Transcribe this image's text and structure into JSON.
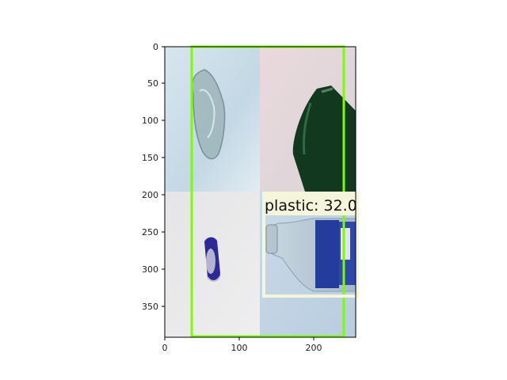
{
  "plot": {
    "x_ticks": [
      "0",
      "100",
      "200"
    ],
    "y_ticks": [
      "0",
      "50",
      "100",
      "150",
      "200",
      "250",
      "300",
      "350"
    ]
  },
  "image_tiles": [
    {
      "name": "tile-top-left",
      "content": "broken glass shard"
    },
    {
      "name": "tile-top-right",
      "content": "green glass bottle"
    },
    {
      "name": "tile-bottom-left",
      "content": "crushed blue can"
    },
    {
      "name": "tile-bottom-right",
      "content": "clear plastic bottle"
    }
  ],
  "detections": [
    {
      "label": "",
      "box_color": "#7cfc00"
    },
    {
      "label": "plastic: 32.0",
      "box_color": "#f5f5dc"
    }
  ],
  "colors": {
    "green_box": "#7cfc00",
    "plastic_box": "#f5f5dc",
    "label_bg": "#f5f5dc"
  }
}
